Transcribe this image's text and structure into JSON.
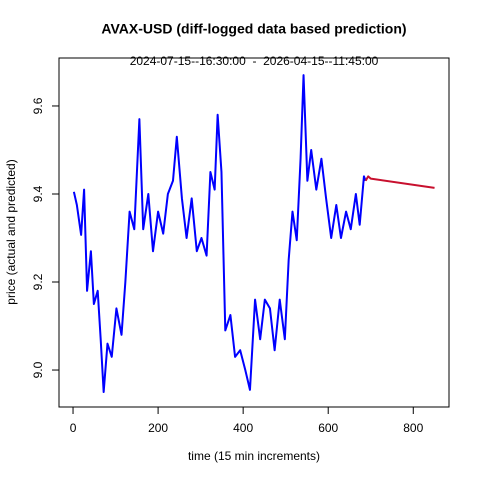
{
  "chart_data": {
    "type": "line",
    "title": "AVAX-USD (diff-logged data based prediction)",
    "subtitle": "2024-07-15--16:30:00  -  2026-04-15--11:45:00",
    "xlabel": "time (15 min increments)",
    "ylabel": "price (actual and predicted)",
    "xlim": [
      -33,
      884
    ],
    "xticks": [
      0,
      200,
      400,
      600,
      800
    ],
    "ylim": [
      8.916,
      9.709
    ],
    "yticks": [
      {
        "value": 9,
        "label": "9.0"
      },
      9.2,
      9.4,
      9.6
    ],
    "series": [
      {
        "color": "#0000ff",
        "x": [
          2,
          9,
          19,
          26,
          33,
          42,
          49,
          58,
          65,
          72,
          81,
          91,
          102,
          114,
          123,
          133,
          144,
          156,
          165,
          177,
          188,
          200,
          212,
          223,
          235,
          244,
          256,
          267,
          279,
          291,
          302,
          314,
          323,
          333,
          340,
          349,
          358,
          370,
          381,
          393,
          405,
          416,
          428,
          440,
          451,
          463,
          474,
          486,
          498,
          507,
          516,
          526,
          535,
          542,
          551,
          560,
          572,
          584,
          595,
          607,
          619,
          630,
          642,
          653,
          665,
          674,
          684,
          688
        ],
        "values": [
          9.405,
          9.375,
          9.307,
          9.41,
          9.18,
          9.27,
          9.15,
          9.18,
          9.07,
          8.95,
          9.06,
          9.03,
          9.14,
          9.08,
          9.2,
          9.36,
          9.32,
          9.57,
          9.32,
          9.4,
          9.27,
          9.36,
          9.31,
          9.4,
          9.43,
          9.53,
          9.39,
          9.3,
          9.39,
          9.27,
          9.3,
          9.26,
          9.45,
          9.41,
          9.58,
          9.45,
          9.09,
          9.125,
          9.03,
          9.045,
          9.0,
          8.955,
          9.16,
          9.07,
          9.16,
          9.14,
          9.045,
          9.16,
          9.07,
          9.25,
          9.36,
          9.295,
          9.48,
          9.67,
          9.43,
          9.5,
          9.41,
          9.48,
          9.39,
          9.3,
          9.375,
          9.3,
          9.36,
          9.32,
          9.4,
          9.33,
          9.44,
          9.43
        ]
      },
      {
        "color": "#c8102e",
        "x": [
          688,
          694,
          700,
          850
        ],
        "values": [
          9.43,
          9.44,
          9.435,
          9.414
        ]
      }
    ]
  }
}
